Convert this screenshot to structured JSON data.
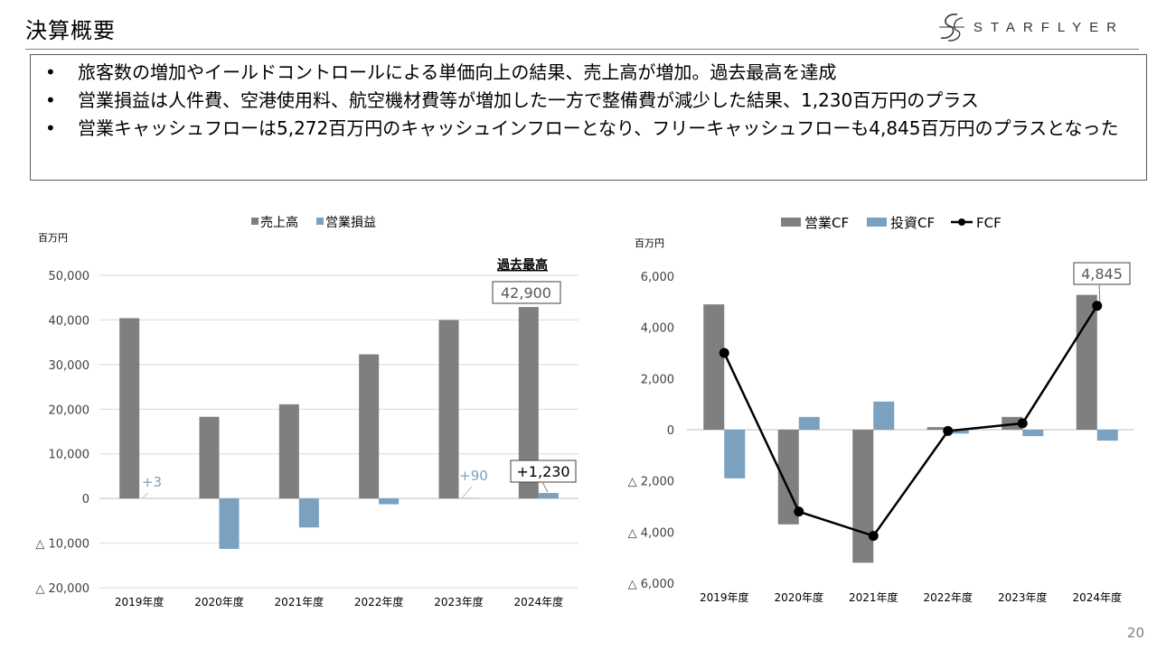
{
  "header": {
    "title": "決算概要",
    "logo_text": "STARFLYER"
  },
  "bullets": [
    "旅客数の増加やイールドコントロールによる単価向上の結果、売上高が増加。過去最高を達成",
    "営業損益は人件費、空港使用料、航空機材費等が増加した一方で整備費が減少した結果、1,230百万円のプラス",
    "営業キャッシュフローは5,272百万円のキャッシュインフローとなり、フリーキャッシュフローも4,845百万円のプラスとなった"
  ],
  "page_number": "20",
  "colors": {
    "gray_bar": "#7f7f7f",
    "blue_bar": "#7aa1c0",
    "fcf_line": "#000000",
    "gridline": "#d9d9d9"
  },
  "chart_data": [
    {
      "type": "bar",
      "unit_label": "百万円",
      "categories": [
        "2019年度",
        "2020年度",
        "2021年度",
        "2022年度",
        "2023年度",
        "2024年度"
      ],
      "series": [
        {
          "name": "売上高",
          "values": [
            40400,
            18300,
            21100,
            32300,
            40000,
            42900
          ]
        },
        {
          "name": "営業損益",
          "values": [
            3,
            -11300,
            -6500,
            -1300,
            90,
            1230
          ]
        }
      ],
      "ylim": [
        -20000,
        50000
      ],
      "yticks": [
        50000,
        40000,
        30000,
        20000,
        10000,
        0,
        -10000,
        -20000
      ],
      "ytick_labels": [
        "50,000",
        "40,000",
        "30,000",
        "20,000",
        "10,000",
        "0",
        "△ 10,000",
        "△ 20,000"
      ],
      "legend_position": "top",
      "annotations": {
        "record_label": "過去最高",
        "boxed_sales": "42,900",
        "boxed_profit": "+1,230",
        "profit_2019": "+3",
        "profit_2023": "+90"
      }
    },
    {
      "type": "bar",
      "unit_label": "百万円",
      "categories": [
        "2019年度",
        "2020年度",
        "2021年度",
        "2022年度",
        "2023年度",
        "2024年度"
      ],
      "series": [
        {
          "name": "営業CF",
          "values": [
            4900,
            -3700,
            -5200,
            100,
            500,
            5272
          ]
        },
        {
          "name": "投資CF",
          "values": [
            -1900,
            500,
            1100,
            -150,
            -250,
            -427
          ]
        },
        {
          "name": "FCF",
          "type": "line",
          "values": [
            3000,
            -3200,
            -4150,
            -50,
            250,
            4845
          ]
        }
      ],
      "ylim": [
        -6000,
        6000
      ],
      "yticks": [
        6000,
        4000,
        2000,
        0,
        -2000,
        -4000,
        -6000
      ],
      "ytick_labels": [
        "6,000",
        "4,000",
        "2,000",
        "0",
        "△ 2,000",
        "△ 4,000",
        "△ 6,000"
      ],
      "legend_position": "top",
      "annotations": {
        "boxed_fcf": "4,845"
      }
    }
  ]
}
